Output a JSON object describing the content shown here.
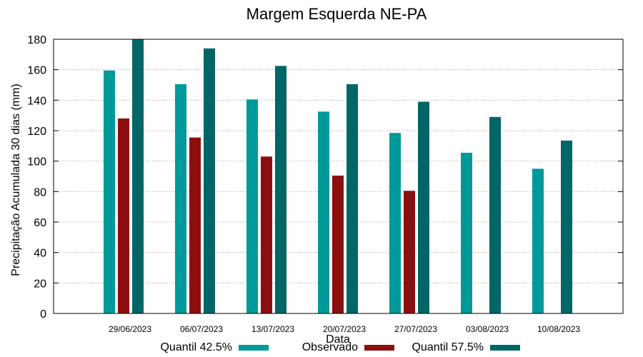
{
  "chart_data": {
    "type": "bar",
    "title": "Margem Esquerda NE-PA",
    "xlabel": "Data",
    "ylabel": "Precipitação Acumulada 30 dias (mm)",
    "ylim": [
      0,
      180
    ],
    "yticks": [
      "0",
      "20",
      "40",
      "60",
      "80",
      "100",
      "120",
      "140",
      "160",
      "180"
    ],
    "grid": true,
    "legend_position": "bottom",
    "categories": [
      "29/06/2023",
      "06/07/2023",
      "13/07/2023",
      "20/07/2023",
      "27/07/2023",
      "03/08/2023",
      "10/08/2023"
    ],
    "series": [
      {
        "name": "Quantil 42.5%",
        "color": "#009999",
        "values": [
          159.5,
          150.5,
          140.5,
          132.5,
          118.5,
          105.5,
          95
        ]
      },
      {
        "name": "Observado",
        "color": "#8b0f0f",
        "values": [
          128,
          115.5,
          103,
          90.5,
          80.5,
          null,
          null
        ]
      },
      {
        "name": "Quantil 57.5%",
        "color": "#006666",
        "values": [
          180,
          174,
          162.5,
          150.5,
          139,
          129,
          113.5
        ]
      }
    ]
  }
}
